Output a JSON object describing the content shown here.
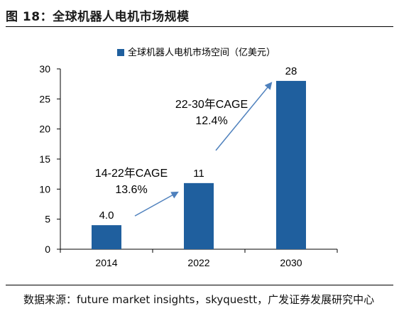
{
  "figure": {
    "title": "图 18：全球机器人电机市场规模",
    "source": "数据来源：future market insights，skyquestt，广发证券发展研究中心"
  },
  "colors": {
    "bar": "#1f5f9e",
    "arrow": "#4f81bd"
  },
  "chart_data": {
    "type": "bar",
    "categories": [
      "2014",
      "2022",
      "2030"
    ],
    "series": [
      {
        "name": "全球机器人电机市场空间（亿美元）",
        "values": [
          4.0,
          11,
          28
        ],
        "labels": [
          "4.0",
          "11",
          "28"
        ]
      }
    ],
    "ylim": [
      0,
      30
    ],
    "yticks": [
      0,
      5,
      10,
      15,
      20,
      25,
      30
    ],
    "legend_position": "top",
    "grid": false,
    "annotations": [
      {
        "line1": "14-22年CAGE",
        "line2": "13.6%"
      },
      {
        "line1": "22-30年CAGE",
        "line2": "12.4%"
      }
    ]
  }
}
